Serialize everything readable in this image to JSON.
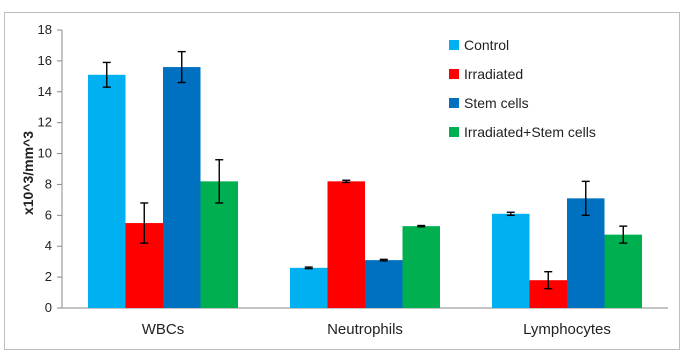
{
  "chart_data": {
    "type": "bar",
    "title": "",
    "xlabel": "",
    "ylabel": "x10^3/mm^3",
    "ylim": [
      0,
      18
    ],
    "yticks": [
      0,
      2,
      4,
      6,
      8,
      10,
      12,
      14,
      16,
      18
    ],
    "grid": false,
    "legend_position": "top-right",
    "categories": [
      "WBCs",
      "Neutrophils",
      "Lymphocytes"
    ],
    "series": [
      {
        "name": "Control",
        "color": "#00B0F0",
        "values": [
          15.1,
          2.6,
          6.1
        ],
        "errors": [
          0.8,
          0.05,
          0.1
        ]
      },
      {
        "name": "Irradiated",
        "color": "#FF0000",
        "values": [
          5.5,
          8.2,
          1.8
        ],
        "errors": [
          1.3,
          0.07,
          0.55
        ]
      },
      {
        "name": "Stem cells",
        "color": "#0070C0",
        "values": [
          15.6,
          3.1,
          7.1
        ],
        "errors": [
          1.0,
          0.05,
          1.1
        ]
      },
      {
        "name": "Irradiated+Stem cells",
        "color": "#00B050",
        "values": [
          8.2,
          5.3,
          4.75
        ],
        "errors": [
          1.4,
          0.04,
          0.55
        ]
      }
    ]
  }
}
